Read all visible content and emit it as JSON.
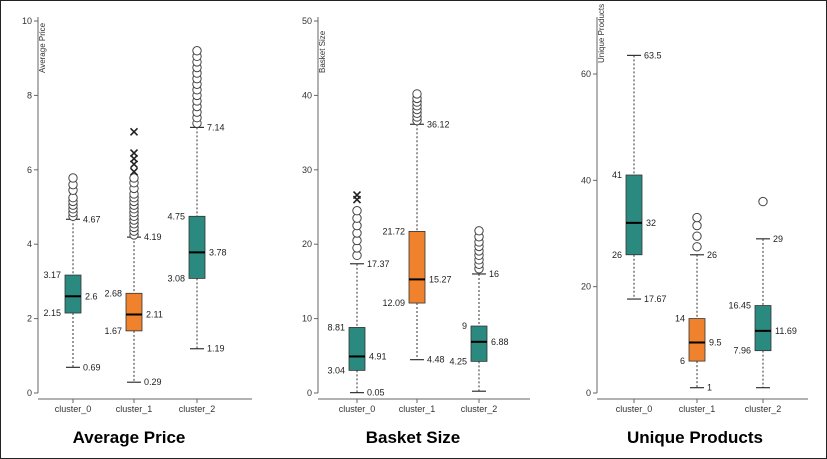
{
  "chart_data": [
    {
      "type": "box",
      "title": "Average Price",
      "ylabel": "Average Price",
      "ylim": [
        0,
        10
      ],
      "yticks": [
        0,
        2,
        4,
        6,
        8,
        10
      ],
      "categories": [
        "cluster_0",
        "cluster_1",
        "cluster_2"
      ],
      "colors": [
        "#2a8a80",
        "#f0812d",
        "#2a8a80"
      ],
      "boxes": [
        {
          "lower_whisker": 0.69,
          "q1": 2.15,
          "median": 2.6,
          "q3": 3.17,
          "upper_whisker": 4.67,
          "labels": {
            "lower_whisker": "0.69",
            "q1": "2.15",
            "median": "2.6",
            "q3": "3.17",
            "upper_whisker": "4.67"
          },
          "outliers": [
            4.75,
            4.85,
            4.95,
            5.05,
            5.15,
            5.25,
            5.45,
            5.6,
            5.78
          ],
          "extremes": []
        },
        {
          "lower_whisker": 0.29,
          "q1": 1.67,
          "median": 2.11,
          "q3": 2.68,
          "upper_whisker": 4.19,
          "labels": {
            "lower_whisker": "0.29",
            "q1": "1.67",
            "median": "2.11",
            "q3": "2.68",
            "upper_whisker": "4.19"
          },
          "outliers": [
            4.25,
            4.35,
            4.45,
            4.55,
            4.65,
            4.75,
            4.85,
            4.95,
            5.05,
            5.15,
            5.25,
            5.35,
            5.5,
            5.65,
            5.78
          ],
          "extremes": [
            5.95,
            6.15,
            6.3,
            6.45,
            7.02
          ]
        },
        {
          "lower_whisker": 1.19,
          "q1": 3.08,
          "median": 3.78,
          "q3": 4.75,
          "upper_whisker": 7.14,
          "labels": {
            "lower_whisker": "1.19",
            "q1": "3.08",
            "median": "3.78",
            "q3": "4.75",
            "upper_whisker": "7.14"
          },
          "outliers": [
            7.25,
            7.4,
            7.55,
            7.7,
            7.85,
            8.0,
            8.15,
            8.3,
            8.45,
            8.6,
            8.75,
            8.9,
            9.05,
            9.2
          ],
          "extremes": []
        }
      ]
    },
    {
      "type": "box",
      "title": "Basket Size",
      "ylabel": "Basket Size",
      "ylim": [
        0,
        50
      ],
      "yticks": [
        0,
        10,
        20,
        30,
        40,
        50
      ],
      "categories": [
        "cluster_0",
        "cluster_1",
        "cluster_2"
      ],
      "colors": [
        "#2a8a80",
        "#f0812d",
        "#2a8a80"
      ],
      "boxes": [
        {
          "lower_whisker": 0.05,
          "q1": 3.04,
          "median": 4.91,
          "q3": 8.81,
          "upper_whisker": 17.37,
          "labels": {
            "lower_whisker": "0.05",
            "q1": "3.04",
            "median": "4.91",
            "q3": "8.81",
            "upper_whisker": "17.37"
          },
          "outliers": [
            18.5,
            19.5,
            20.5,
            21.5,
            22.5,
            23.5,
            24.5
          ],
          "extremes": [
            26.0,
            26.6
          ]
        },
        {
          "lower_whisker": 4.48,
          "q1": 12.09,
          "median": 15.27,
          "q3": 21.72,
          "upper_whisker": 36.12,
          "labels": {
            "lower_whisker": "4.48",
            "q1": "12.09",
            "median": "15.27",
            "q3": "21.72",
            "upper_whisker": "36.12"
          },
          "outliers": [
            36.6,
            37.1,
            37.6,
            38.1,
            38.6,
            39.1,
            39.6,
            40.2
          ],
          "extremes": []
        },
        {
          "lower_whisker": 0.24,
          "q1": 4.25,
          "median": 6.88,
          "q3": 9,
          "upper_whisker": 16,
          "labels": {
            "lower_whisker": "",
            "q1": "4.25",
            "median": "6.88",
            "q3": "9",
            "upper_whisker": "16"
          },
          "outliers": [
            16.7,
            17.3,
            17.9,
            18.5,
            19.1,
            19.7,
            20.3,
            21.0,
            21.8
          ],
          "extremes": []
        }
      ]
    },
    {
      "type": "box",
      "title": "Unique Products",
      "ylabel": "Unique Products",
      "ylim": [
        0,
        70
      ],
      "yticks": [
        0,
        20,
        40,
        60
      ],
      "categories": [
        "cluster_0",
        "cluster_1",
        "cluster_2"
      ],
      "colors": [
        "#2a8a80",
        "#f0812d",
        "#2a8a80"
      ],
      "boxes": [
        {
          "lower_whisker": 17.67,
          "q1": 26,
          "median": 32,
          "q3": 41,
          "upper_whisker": 63.5,
          "labels": {
            "lower_whisker": "17.67",
            "q1": "26",
            "median": "32",
            "q3": "41",
            "upper_whisker": "63.5"
          },
          "outliers": [],
          "extremes": []
        },
        {
          "lower_whisker": 1,
          "q1": 6,
          "median": 9.5,
          "q3": 14,
          "upper_whisker": 26,
          "labels": {
            "lower_whisker": "1",
            "q1": "6",
            "median": "9.5",
            "q3": "14",
            "upper_whisker": "26"
          },
          "outliers": [
            27.5,
            29.5,
            31.5,
            33
          ],
          "extremes": []
        },
        {
          "lower_whisker": 1,
          "q1": 7.96,
          "median": 11.69,
          "q3": 16.45,
          "upper_whisker": 29,
          "labels": {
            "lower_whisker": "",
            "q1": "7.96",
            "median": "11.69",
            "q3": "16.45",
            "upper_whisker": "29"
          },
          "outliers": [
            36
          ],
          "extremes": []
        }
      ]
    }
  ]
}
